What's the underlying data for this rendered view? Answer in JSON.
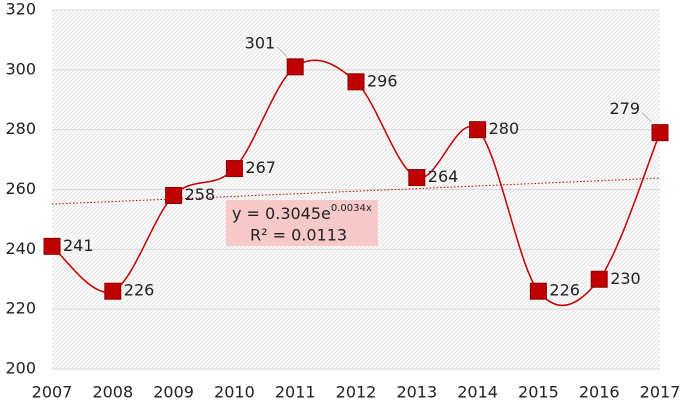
{
  "chart_data": {
    "type": "line",
    "x": [
      2007,
      2008,
      2009,
      2010,
      2011,
      2012,
      2013,
      2014,
      2015,
      2016,
      2017
    ],
    "values": [
      241,
      226,
      258,
      267,
      301,
      296,
      264,
      280,
      226,
      230,
      279
    ],
    "color": "#c00000",
    "xlim": [
      2007,
      2017
    ],
    "xticks": [
      2007,
      2008,
      2009,
      2010,
      2011,
      2012,
      2013,
      2014,
      2015,
      2016,
      2017
    ],
    "ylim": [
      200,
      320
    ],
    "yticks": [
      200,
      220,
      240,
      260,
      280,
      300,
      320
    ],
    "grid": true,
    "smooth": true,
    "trendline": "exponential",
    "annotation": {
      "equation_base": "y = 0.3045e",
      "equation_exponent": "0.0034x",
      "r_squared": "R² = 0.0113"
    }
  }
}
